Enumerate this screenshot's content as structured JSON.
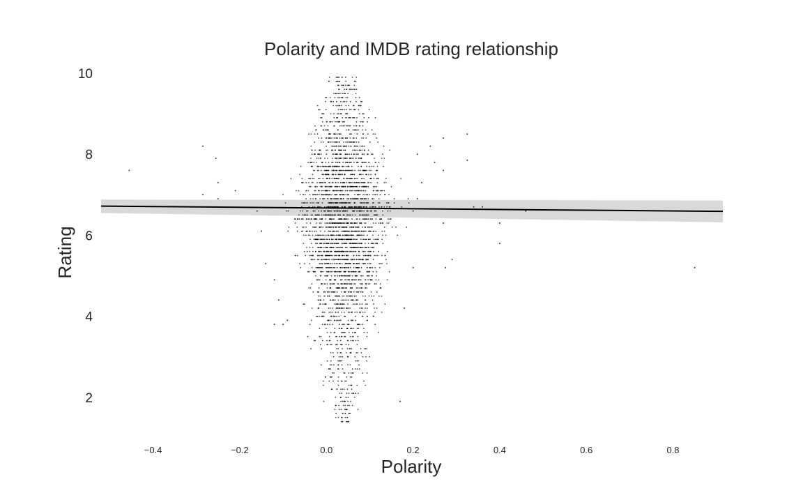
{
  "chart_data": {
    "type": "scatter",
    "title": "Polarity and IMDB rating relationship",
    "xlabel": "Polarity",
    "ylabel": "Rating",
    "xlim": [
      -0.52,
      0.915
    ],
    "ylim": [
      1.0,
      10.0
    ],
    "x_ticks": [
      -0.4,
      -0.2,
      0.0,
      0.2,
      0.4,
      0.6,
      0.8
    ],
    "x_tick_labels": [
      "−0.4",
      "−0.2",
      "0.0",
      "0.2",
      "0.4",
      "0.6",
      "0.8"
    ],
    "y_ticks": [
      2,
      4,
      6,
      8,
      10
    ],
    "y_tick_labels": [
      "2",
      "4",
      "6",
      "8",
      "10"
    ],
    "grid": false,
    "point_color": "#000000",
    "background": "#ffffff",
    "regression": {
      "x": [
        -0.52,
        0.915
      ],
      "y": [
        6.72,
        6.59
      ],
      "ci_lower": [
        6.55,
        6.32
      ],
      "ci_upper": [
        6.88,
        6.86
      ],
      "line_color": "#000000",
      "band_color": "#d9d9d9"
    },
    "points_main_cloud": {
      "x_center": 0.04,
      "rating_min": 1.4,
      "rating_max": 9.9,
      "rating_step": 0.1,
      "half_width_by_rating": [
        [
          1.4,
          0.03
        ],
        [
          2.0,
          0.06
        ],
        [
          3.0,
          0.09
        ],
        [
          4.0,
          0.11
        ],
        [
          5.0,
          0.13
        ],
        [
          6.0,
          0.15
        ],
        [
          6.7,
          0.17
        ],
        [
          7.5,
          0.15
        ],
        [
          8.0,
          0.13
        ],
        [
          9.0,
          0.1
        ],
        [
          9.9,
          0.05
        ]
      ]
    },
    "outlier_points": [
      [
        -0.455,
        7.6
      ],
      [
        -0.285,
        8.2
      ],
      [
        -0.255,
        7.9
      ],
      [
        -0.25,
        7.3
      ],
      [
        -0.25,
        6.9
      ],
      [
        -0.285,
        7.0
      ],
      [
        -0.21,
        7.1
      ],
      [
        -0.16,
        6.6
      ],
      [
        -0.14,
        5.3
      ],
      [
        -0.12,
        4.9
      ],
      [
        -0.15,
        6.1
      ],
      [
        -0.11,
        4.4
      ],
      [
        -0.1,
        3.8
      ],
      [
        -0.09,
        3.9
      ],
      [
        -0.12,
        3.8
      ],
      [
        0.17,
        1.9
      ],
      [
        0.2,
        6.6
      ],
      [
        0.21,
        6.9
      ],
      [
        0.24,
        8.2
      ],
      [
        0.27,
        7.6
      ],
      [
        0.27,
        8.4
      ],
      [
        0.325,
        7.85
      ],
      [
        0.325,
        8.5
      ],
      [
        0.36,
        6.7
      ],
      [
        0.34,
        6.7
      ],
      [
        0.4,
        6.3
      ],
      [
        0.4,
        5.8
      ],
      [
        0.29,
        5.4
      ],
      [
        0.275,
        5.2
      ],
      [
        0.2,
        5.2
      ],
      [
        0.18,
        4.2
      ],
      [
        0.22,
        7.3
      ],
      [
        0.25,
        7.8
      ],
      [
        0.21,
        8.0
      ],
      [
        0.27,
        6.3
      ],
      [
        0.46,
        6.6
      ],
      [
        0.85,
        5.2
      ]
    ]
  }
}
